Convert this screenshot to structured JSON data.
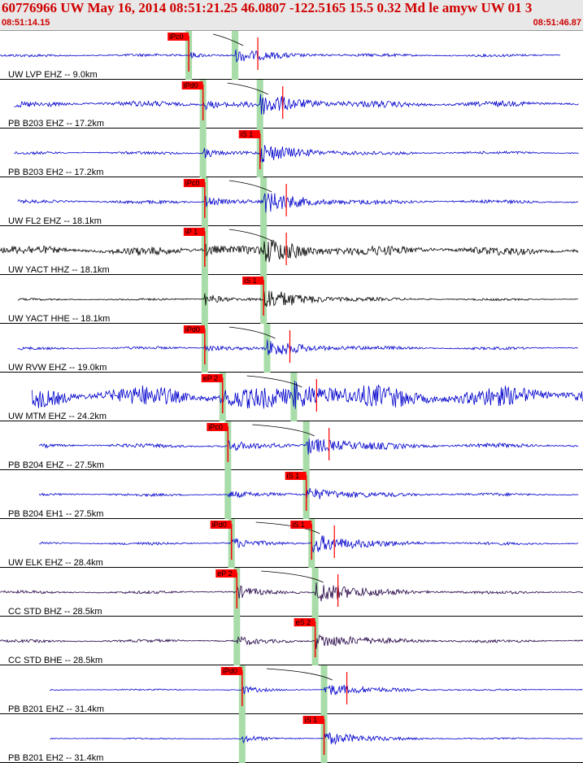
{
  "header": {
    "title": "60776966 UW May 16, 2014 08:51:21.25   46.0807 -122.5165 15.5 0.32 Md le amyw UW 01   3",
    "start_time": "08:51:14.15",
    "end_time": "08:51:46.87"
  },
  "colors": {
    "trace_blue": "#0000cc",
    "trace_black": "#000000",
    "trace_purple": "#220044",
    "pick_red": "#ff0000",
    "window_green": "#a8dca8",
    "header_red": "#d00000"
  },
  "chart_data": {
    "type": "seismogram",
    "time_range": [
      "08:51:14.15",
      "08:51:46.87"
    ],
    "duration_s": 32.72,
    "traces": [
      {
        "label": "UW LVP EHZ -- 9.0km",
        "color": "blue",
        "p_pick": "iPc0",
        "p_t": 10.6,
        "s_t": 13.2,
        "s_pick": "",
        "amp": 0.25,
        "noise": 0.04,
        "end_t": 31.5,
        "start_t": 0.0
      },
      {
        "label": "PB B203 EHZ -- 17.2km",
        "color": "blue",
        "p_pick": "iPd0",
        "p_t": 11.4,
        "s_t": 14.6,
        "s_pick": "",
        "amp": 0.4,
        "noise": 0.08,
        "end_t": 32.5,
        "start_t": 0.8
      },
      {
        "label": "PB B203 EH2 -- 17.2km",
        "color": "blue",
        "p_pick": "",
        "p_t": 11.4,
        "s_t": 14.6,
        "s_pick": "iS 1",
        "amp": 0.4,
        "noise": 0.04,
        "end_t": 32.5,
        "start_t": 0.8
      },
      {
        "label": "UW FL2 EHZ -- 18.1km",
        "color": "blue",
        "p_pick": "iPc0",
        "p_t": 11.5,
        "s_t": 14.8,
        "s_pick": "",
        "amp": 0.45,
        "noise": 0.05,
        "end_t": 32.5,
        "start_t": 1.0
      },
      {
        "label": "UW YACT HHZ -- 18.1km",
        "color": "black",
        "p_pick": "iP 1",
        "p_t": 11.5,
        "s_t": 14.8,
        "s_pick": "",
        "amp": 0.45,
        "noise": 0.12,
        "end_t": 32.5,
        "start_t": 0.0
      },
      {
        "label": "UW YACT HHE -- 18.1km",
        "color": "black",
        "p_pick": "",
        "p_t": 11.5,
        "s_t": 14.8,
        "s_pick": "iS 1",
        "amp": 0.5,
        "noise": 0.03,
        "end_t": 32.5,
        "start_t": 1.0
      },
      {
        "label": "UW RVW EHZ -- 19.0km",
        "color": "blue",
        "p_pick": "iPd0",
        "p_t": 11.5,
        "s_t": 15.0,
        "s_pick": "",
        "amp": 0.35,
        "noise": 0.04,
        "end_t": 32.5,
        "start_t": 1.0
      },
      {
        "label": "UW MTM EHZ -- 24.2km",
        "color": "blue",
        "p_pick": "eP 2",
        "p_t": 12.5,
        "s_t": 16.5,
        "s_pick": "",
        "amp": 0.45,
        "noise": 0.28,
        "end_t": 33.3,
        "start_t": 1.8
      },
      {
        "label": "PB B204 EHZ -- 27.5km",
        "color": "blue",
        "p_pick": "iPc0",
        "p_t": 12.8,
        "s_t": 17.2,
        "s_pick": "",
        "amp": 0.4,
        "noise": 0.06,
        "end_t": 32.5,
        "start_t": 2.2
      },
      {
        "label": "PB B204 EH1 -- 27.5km",
        "color": "blue",
        "p_pick": "",
        "p_t": 12.8,
        "s_t": 17.2,
        "s_pick": "iS 1",
        "amp": 0.3,
        "noise": 0.04,
        "end_t": 32.5,
        "start_t": 2.2
      },
      {
        "label": "UW ELK EHZ -- 28.4km",
        "color": "blue",
        "p_pick": "iPd0",
        "p_t": 13.0,
        "s_t": 17.5,
        "s_pick": "iS 1",
        "amp": 0.45,
        "noise": 0.04,
        "end_t": 32.5,
        "start_t": 2.2
      },
      {
        "label": "CC STD BHZ -- 28.5km",
        "color": "purple",
        "p_pick": "eP 2",
        "p_t": 13.3,
        "s_t": 17.7,
        "s_pick": "",
        "amp": 0.5,
        "noise": 0.04,
        "end_t": 33.6,
        "start_t": 0.0
      },
      {
        "label": "CC STD BHE -- 28.5km",
        "color": "purple",
        "p_pick": "",
        "p_t": 13.3,
        "s_t": 17.7,
        "s_pick": "eS 2",
        "amp": 0.35,
        "noise": 0.04,
        "end_t": 33.6,
        "start_t": 0.0
      },
      {
        "label": "PB B201 EHZ -- 31.4km",
        "color": "blue",
        "p_pick": "iPd0",
        "p_t": 13.6,
        "s_t": 18.2,
        "s_pick": "",
        "amp": 0.3,
        "noise": 0.02,
        "end_t": 33.6,
        "start_t": 2.8
      },
      {
        "label": "PB B201 EH2 -- 31.4km",
        "color": "blue",
        "p_pick": "",
        "p_t": 13.6,
        "s_t": 18.2,
        "s_pick": "iS 1",
        "amp": 0.3,
        "noise": 0.02,
        "end_t": 33.6,
        "start_t": 2.8
      }
    ]
  }
}
